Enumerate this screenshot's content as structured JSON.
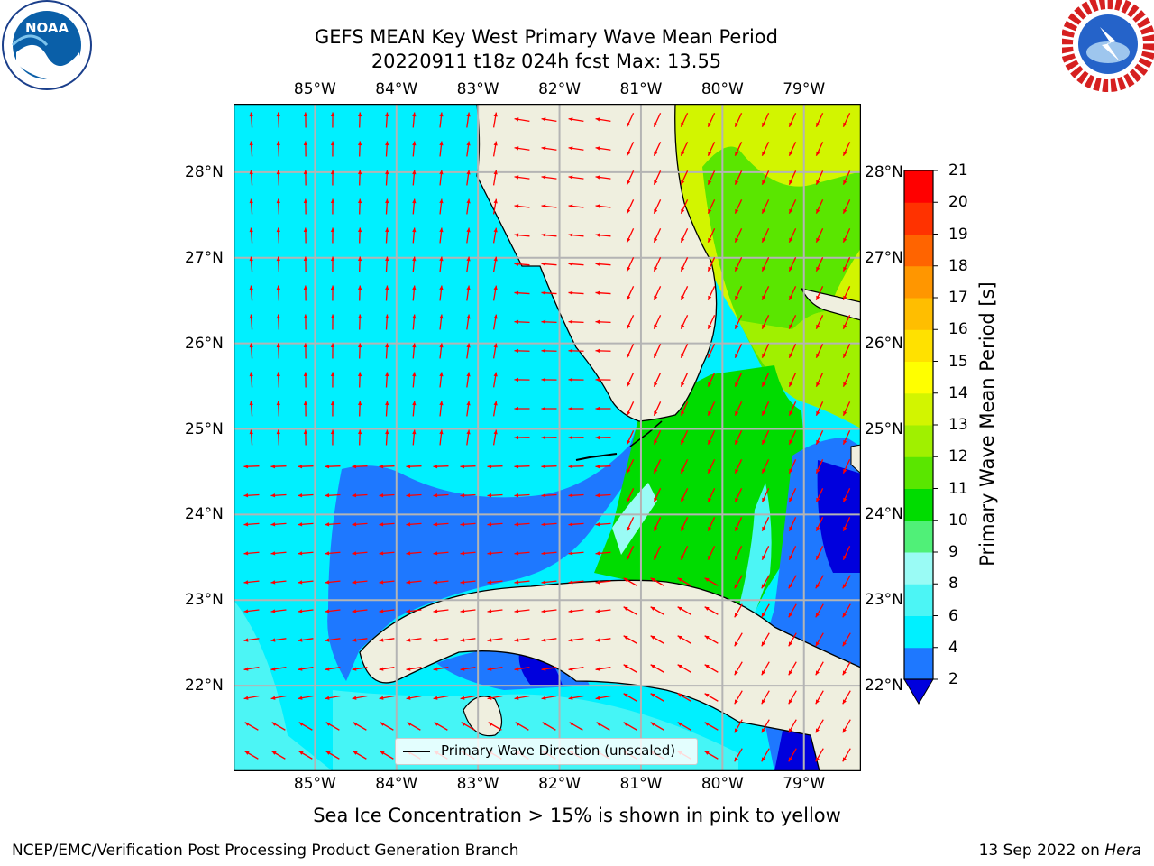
{
  "title": {
    "line1": "GEFS MEAN Key West Primary Wave Mean Period",
    "line2": "20220911 t18z 024h fcst   Max: 13.55"
  },
  "axes": {
    "lon_labels": [
      "85°W",
      "84°W",
      "83°W",
      "82°W",
      "81°W",
      "80°W",
      "79°W"
    ],
    "lat_labels": [
      "28°N",
      "27°N",
      "26°N",
      "25°N",
      "24°N",
      "23°N",
      "22°N"
    ],
    "lon_range": [
      -86.0,
      -78.3
    ],
    "lat_range": [
      21.0,
      28.8
    ]
  },
  "colorbar": {
    "label": "Primary Wave Mean Period [s]",
    "ticks": [
      "2",
      "4",
      "6",
      "8",
      "9",
      "10",
      "11",
      "12",
      "13",
      "14",
      "15",
      "16",
      "17",
      "18",
      "19",
      "20",
      "21"
    ],
    "colors": [
      "#0000dd",
      "#1e78ff",
      "#00f0ff",
      "#4cf5f5",
      "#9afbf5",
      "#50f078",
      "#00dc00",
      "#5ae600",
      "#a0f000",
      "#d2f500",
      "#ffff00",
      "#ffe100",
      "#ffbe00",
      "#ff9600",
      "#ff6400",
      "#ff3200",
      "#ff0000"
    ]
  },
  "legend": {
    "label": "Primary Wave Direction (unscaled)"
  },
  "note": "Sea Ice Concentration > 15% is shown in pink to yellow",
  "footer": {
    "left": "NCEP/EMC/Verification Post Processing Product Generation Branch",
    "right_date": "13 Sep 2022 on",
    "right_host": "Hera"
  },
  "logos": {
    "left": "NOAA",
    "right": "NATIONAL WEATHER SERVICE"
  },
  "colors": {
    "land": "#efefdf",
    "arrow": "#ff0000",
    "grid": "#b4b4b4"
  }
}
